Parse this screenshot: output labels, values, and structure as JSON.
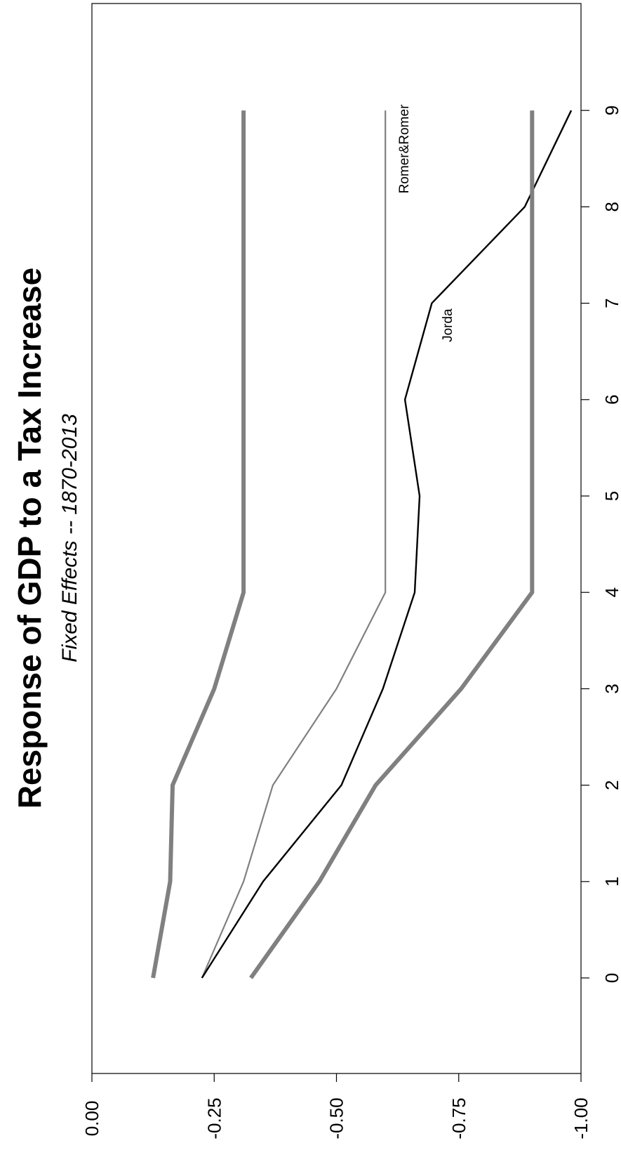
{
  "chart_data": {
    "type": "line",
    "title": "Response of GDP to a Tax Increase",
    "subtitle": "Fixed Effects -- 1870-2013",
    "x": [
      0,
      1,
      2,
      3,
      4,
      5,
      6,
      7,
      8,
      9
    ],
    "x_ticks": [
      "0",
      "1",
      "2",
      "3",
      "4",
      "5",
      "6",
      "7",
      "8",
      "9"
    ],
    "xlim": [
      -1.1,
      9.5
    ],
    "y_ticks": [
      "0.00",
      "-0.25",
      "-0.50",
      "-0.75",
      "-1.00"
    ],
    "y_tick_values": [
      0,
      -0.25,
      -0.5,
      -0.75,
      -1.0
    ],
    "ylim": [
      0,
      -1.0
    ],
    "orientation": "rotated-90",
    "series": [
      {
        "name": "Romer&Romer",
        "color": "#808080",
        "role": "estimate",
        "x": [
          0,
          1,
          2,
          3,
          4,
          9
        ],
        "values": [
          -0.225,
          -0.31,
          -0.37,
          -0.5,
          -0.6,
          -0.6
        ]
      },
      {
        "name": "Jorda",
        "color": "#000000",
        "role": "estimate",
        "x": [
          0,
          1,
          2,
          3,
          4,
          5,
          6,
          7,
          8,
          9
        ],
        "values": [
          -0.225,
          -0.35,
          -0.51,
          -0.595,
          -0.66,
          -0.67,
          -0.64,
          -0.695,
          -0.885,
          -0.98
        ]
      },
      {
        "color": "#808080",
        "role": "upper-band",
        "x": [
          0,
          1,
          2,
          3,
          4,
          9
        ],
        "values": [
          -0.125,
          -0.16,
          -0.165,
          -0.25,
          -0.31,
          -0.31
        ]
      },
      {
        "color": "#808080",
        "role": "lower-band",
        "x": [
          0,
          1,
          2,
          3,
          4,
          9
        ],
        "values": [
          -0.325,
          -0.465,
          -0.58,
          -0.755,
          -0.9,
          -0.9
        ]
      }
    ]
  }
}
